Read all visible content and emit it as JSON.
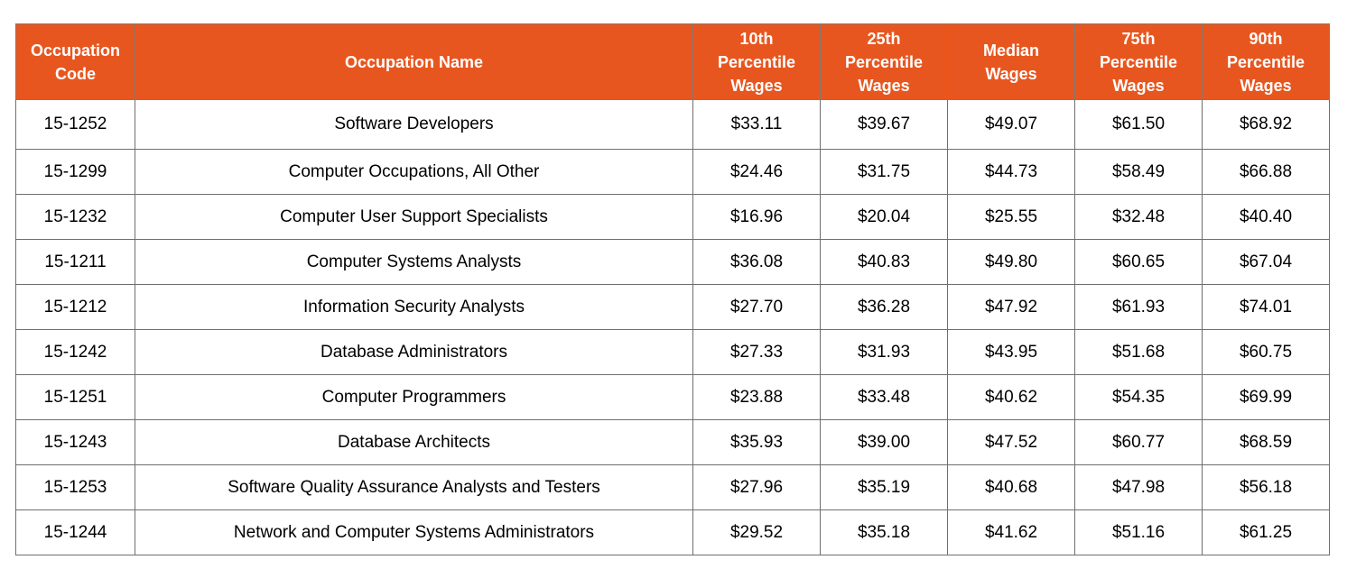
{
  "table": {
    "headers": [
      "Occupation\nCode",
      "Occupation Name",
      "10th\nPercentile\nWages",
      "25th\nPercentile\nWages",
      "Median\nWages",
      "75th\nPercentile\nWages",
      "90th\nPercentile\nWages"
    ],
    "rows": [
      [
        "15-1252",
        "Software Developers",
        "$33.11",
        "$39.67",
        "$49.07",
        "$61.50",
        "$68.92"
      ],
      [
        "15-1299",
        "Computer Occupations, All Other",
        "$24.46",
        "$31.75",
        "$44.73",
        "$58.49",
        "$66.88"
      ],
      [
        "15-1232",
        "Computer User Support Specialists",
        "$16.96",
        "$20.04",
        "$25.55",
        "$32.48",
        "$40.40"
      ],
      [
        "15-1211",
        "Computer Systems Analysts",
        "$36.08",
        "$40.83",
        "$49.80",
        "$60.65",
        "$67.04"
      ],
      [
        "15-1212",
        "Information Security Analysts",
        "$27.70",
        "$36.28",
        "$47.92",
        "$61.93",
        "$74.01"
      ],
      [
        "15-1242",
        "Database Administrators",
        "$27.33",
        "$31.93",
        "$43.95",
        "$51.68",
        "$60.75"
      ],
      [
        "15-1251",
        "Computer Programmers",
        "$23.88",
        "$33.48",
        "$40.62",
        "$54.35",
        "$69.99"
      ],
      [
        "15-1243",
        "Database Architects",
        "$35.93",
        "$39.00",
        "$47.52",
        "$60.77",
        "$68.59"
      ],
      [
        "15-1253",
        "Software Quality Assurance Analysts and Testers",
        "$27.96",
        "$35.19",
        "$40.68",
        "$47.98",
        "$56.18"
      ],
      [
        "15-1244",
        "Network and Computer Systems Administrators",
        "$29.52",
        "$35.18",
        "$41.62",
        "$51.16",
        "$61.25"
      ]
    ]
  },
  "colors": {
    "header_bg": "#e8561f",
    "header_text": "#ffffff",
    "border": "#6f6f6f"
  }
}
